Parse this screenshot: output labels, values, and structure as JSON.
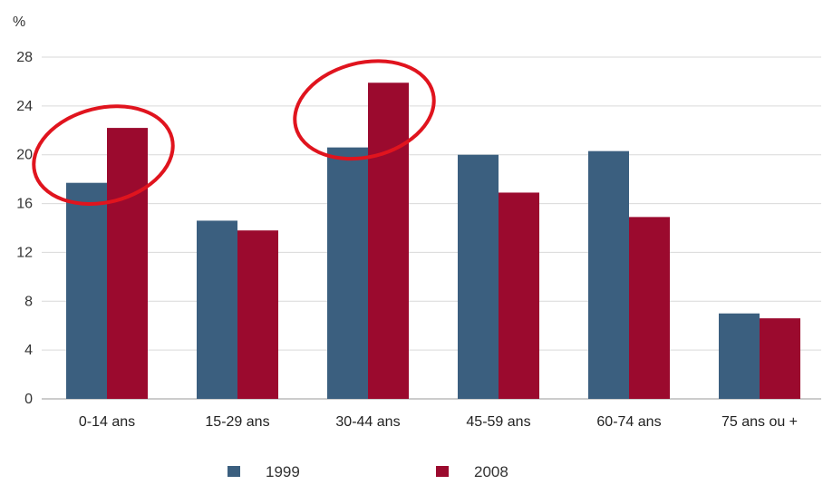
{
  "chart_data": {
    "type": "bar",
    "ylabel": "%",
    "ylim": [
      0,
      28
    ],
    "yticks": [
      0,
      4,
      8,
      12,
      16,
      20,
      24,
      28
    ],
    "categories": [
      "0-14 ans",
      "15-29 ans",
      "30-44 ans",
      "45-59 ans",
      "60-74 ans",
      "75 ans ou +"
    ],
    "series": [
      {
        "name": "1999",
        "color": "#3b5f7f",
        "values": [
          17.7,
          14.6,
          20.6,
          20.0,
          20.3,
          7.0
        ]
      },
      {
        "name": "2008",
        "color": "#9b0a2e",
        "values": [
          22.2,
          13.8,
          25.9,
          16.9,
          14.9,
          6.6
        ]
      }
    ],
    "grid": true,
    "legend_position": "bottom",
    "annotations": [
      {
        "type": "ellipse",
        "color": "#e0141e",
        "around_category": "0-14 ans"
      },
      {
        "type": "ellipse",
        "color": "#e0141e",
        "around_category": "30-44 ans"
      }
    ]
  }
}
